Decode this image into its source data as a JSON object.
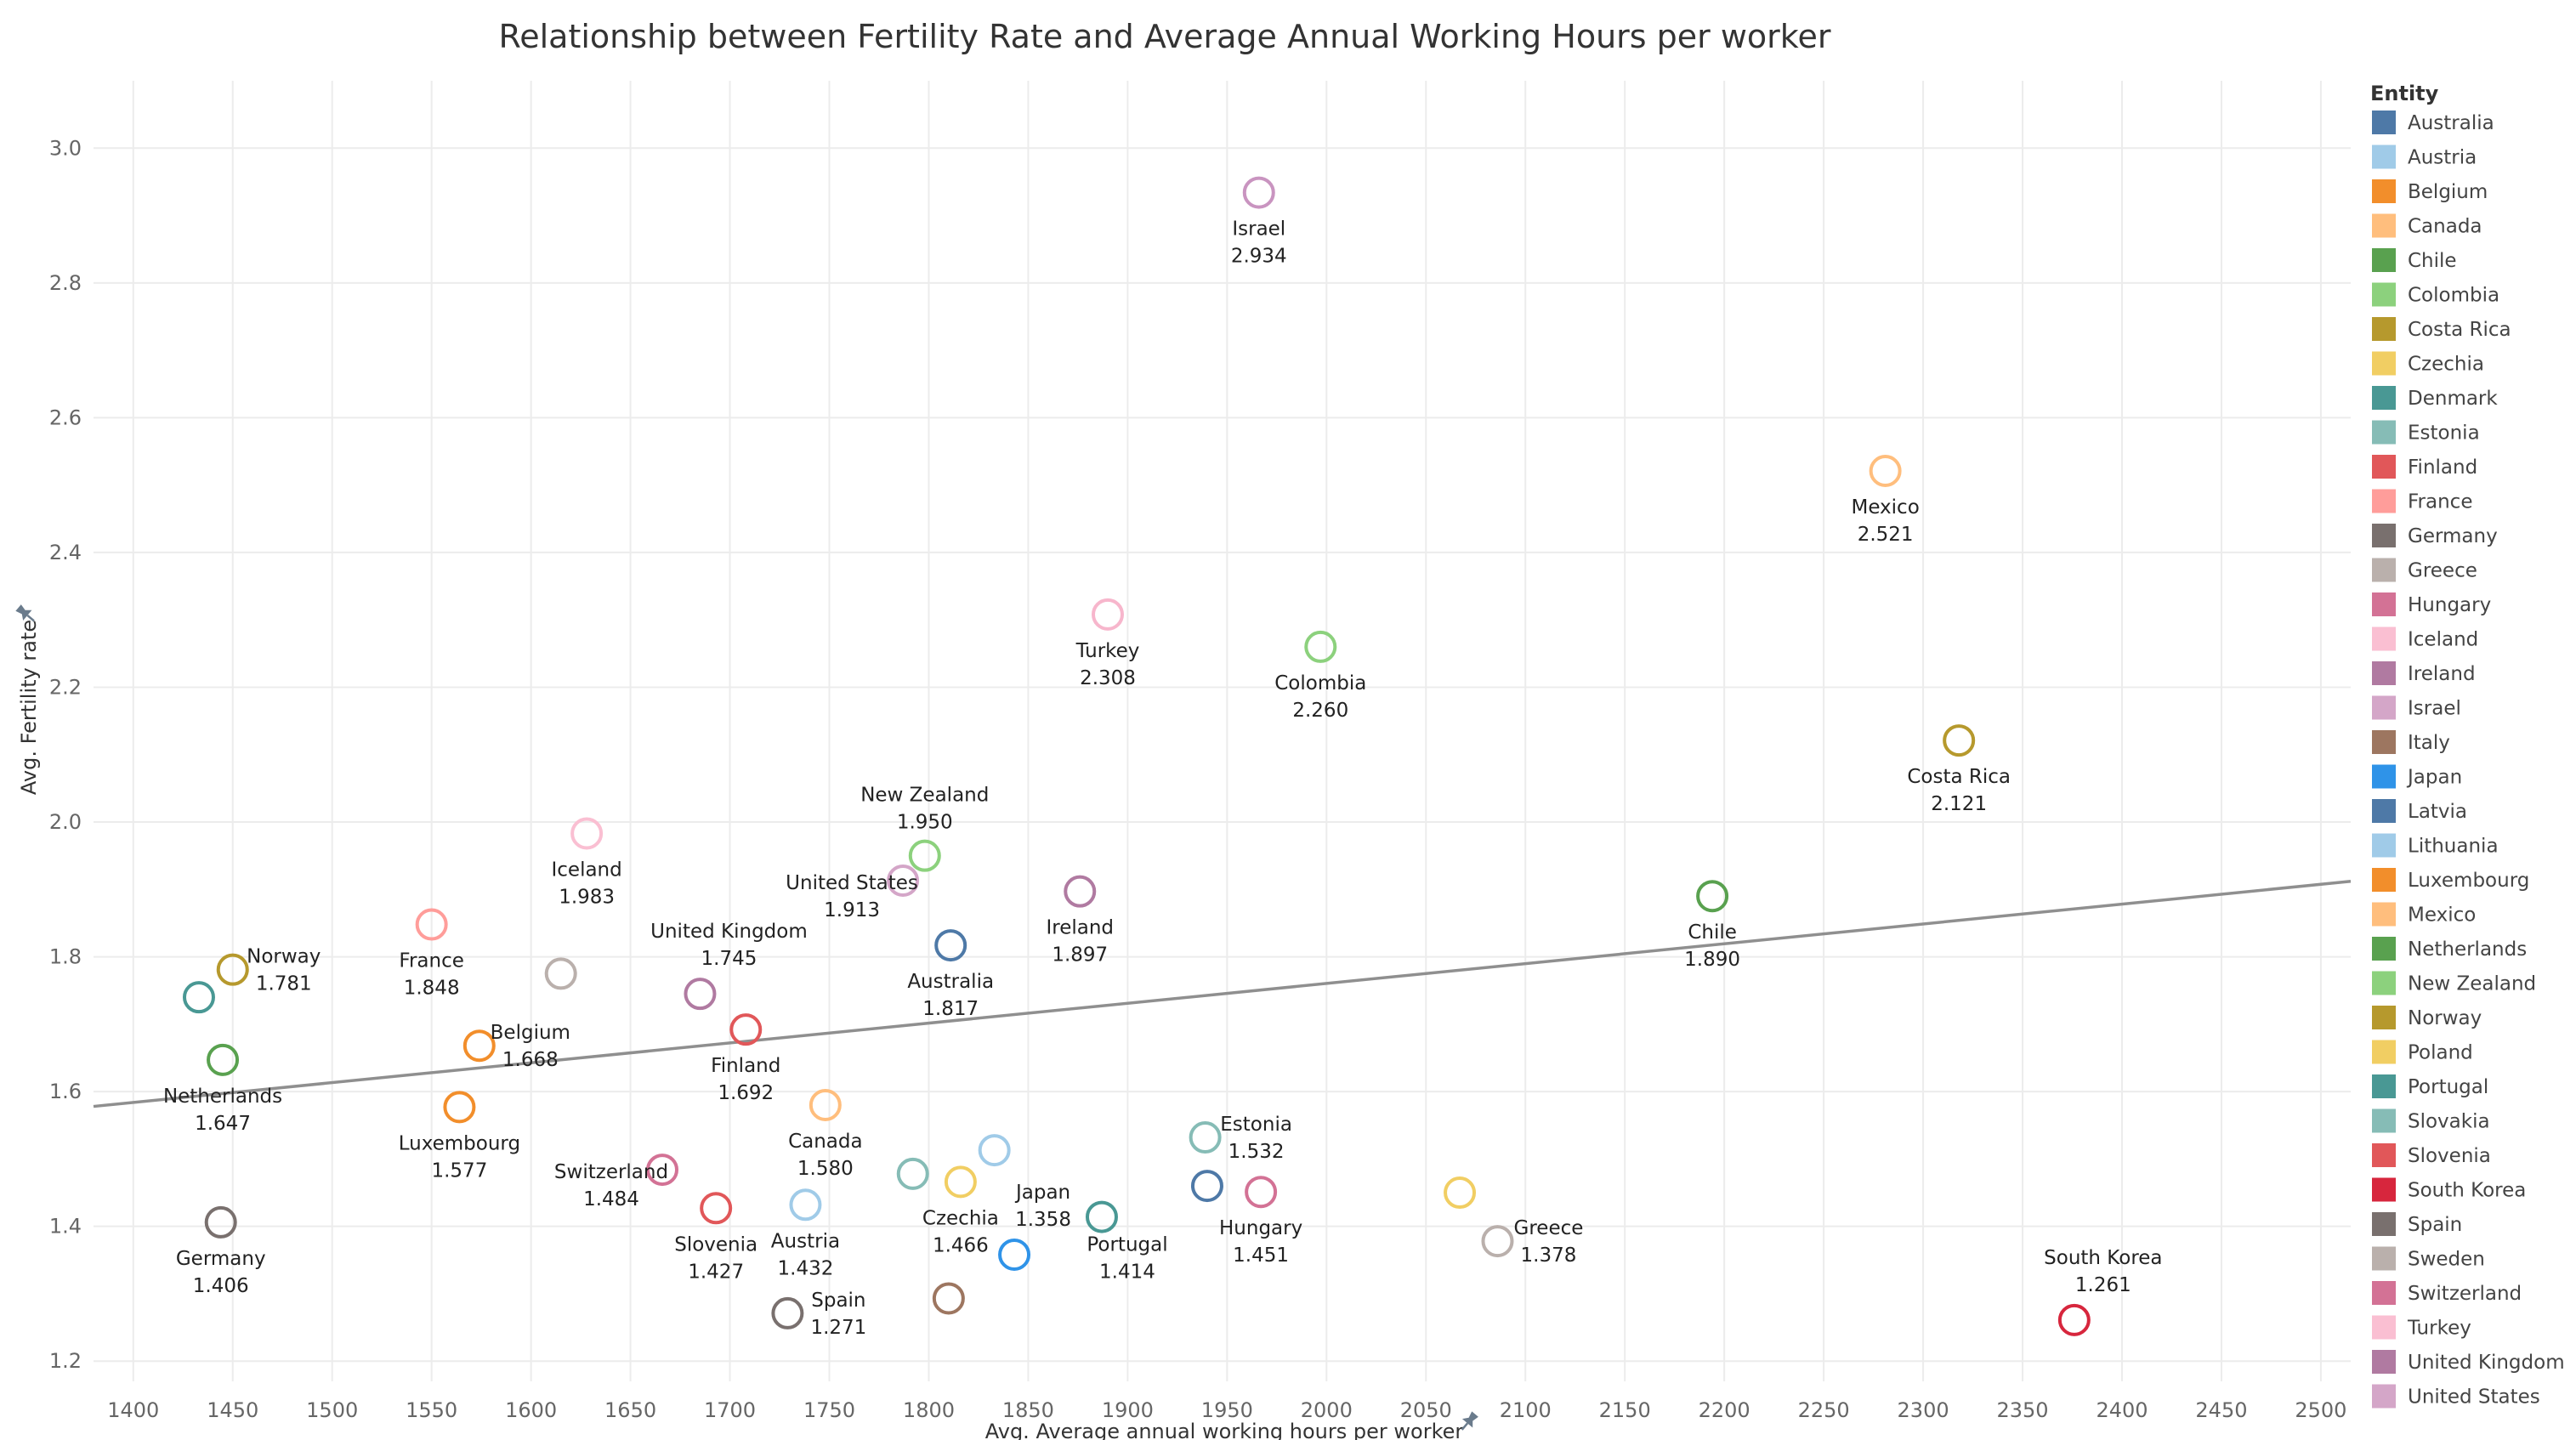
{
  "chart_data": {
    "type": "scatter",
    "title": "Relationship between Fertility Rate and Average Annual Working Hours per worker",
    "xlabel": "Avg. Average annual working hours per worker",
    "ylabel": "Avg. Fertility rate",
    "xlim": [
      1380,
      2515
    ],
    "ylim": [
      1.17,
      3.1
    ],
    "xticks": [
      "1400",
      "1450",
      "1500",
      "1550",
      "1600",
      "1650",
      "1700",
      "1750",
      "1800",
      "1850",
      "1900",
      "1950",
      "2000",
      "2050",
      "2100",
      "2150",
      "2200",
      "2250",
      "2300",
      "2350",
      "2400",
      "2450",
      "2500"
    ],
    "yticks": [
      "1.2",
      "1.4",
      "1.6",
      "1.8",
      "2.0",
      "2.2",
      "2.4",
      "2.6",
      "2.8",
      "3.0"
    ],
    "grid": true,
    "legend_title": "Entity",
    "legend_position": "right",
    "trendline": {
      "x": [
        1380,
        2515
      ],
      "y": [
        1.578,
        1.912
      ]
    },
    "legend": [
      {
        "name": "Australia",
        "color": "#4e79a7"
      },
      {
        "name": "Austria",
        "color": "#a0cbe8"
      },
      {
        "name": "Belgium",
        "color": "#f28e2b"
      },
      {
        "name": "Canada",
        "color": "#ffbe7d"
      },
      {
        "name": "Chile",
        "color": "#59a14f"
      },
      {
        "name": "Colombia",
        "color": "#8cd17d"
      },
      {
        "name": "Costa Rica",
        "color": "#b6992d"
      },
      {
        "name": "Czechia",
        "color": "#f1ce63"
      },
      {
        "name": "Denmark",
        "color": "#499894"
      },
      {
        "name": "Estonia",
        "color": "#86bcb6"
      },
      {
        "name": "Finland",
        "color": "#e15759"
      },
      {
        "name": "France",
        "color": "#ff9d9a"
      },
      {
        "name": "Germany",
        "color": "#79706e"
      },
      {
        "name": "Greece",
        "color": "#bab0ac"
      },
      {
        "name": "Hungary",
        "color": "#d37295"
      },
      {
        "name": "Iceland",
        "color": "#fabfd2"
      },
      {
        "name": "Ireland",
        "color": "#b07aa1"
      },
      {
        "name": "Israel",
        "color": "#d4a6c8"
      },
      {
        "name": "Italy",
        "color": "#9d7660"
      },
      {
        "name": "Japan",
        "color": "#2f93e8"
      },
      {
        "name": "Latvia",
        "color": "#4e79a7"
      },
      {
        "name": "Lithuania",
        "color": "#a0cbe8"
      },
      {
        "name": "Luxembourg",
        "color": "#f28e2b"
      },
      {
        "name": "Mexico",
        "color": "#ffbe7d"
      },
      {
        "name": "Netherlands",
        "color": "#59a14f"
      },
      {
        "name": "New Zealand",
        "color": "#8cd17d"
      },
      {
        "name": "Norway",
        "color": "#b6992d"
      },
      {
        "name": "Poland",
        "color": "#f1ce63"
      },
      {
        "name": "Portugal",
        "color": "#499894"
      },
      {
        "name": "Slovakia",
        "color": "#86bcb6"
      },
      {
        "name": "Slovenia",
        "color": "#e15759"
      },
      {
        "name": "South Korea",
        "color": "#d7263d"
      },
      {
        "name": "Spain",
        "color": "#79706e"
      },
      {
        "name": "Sweden",
        "color": "#bab0ac"
      },
      {
        "name": "Switzerland",
        "color": "#d37295"
      },
      {
        "name": "Turkey",
        "color": "#fabfd2"
      },
      {
        "name": "United Kingdom",
        "color": "#b07aa1"
      },
      {
        "name": "United States",
        "color": "#d4a6c8"
      }
    ],
    "points": [
      {
        "name": "Israel",
        "x": 1966,
        "y": 2.934,
        "label": "2.934",
        "lpos": "below",
        "color": "#c994c0"
      },
      {
        "name": "Mexico",
        "x": 2281,
        "y": 2.521,
        "label": "2.521",
        "lpos": "below",
        "color": "#ffbe7d"
      },
      {
        "name": "Turkey",
        "x": 1890,
        "y": 2.308,
        "label": "2.308",
        "lpos": "below",
        "color": "#f7b6cc"
      },
      {
        "name": "Colombia",
        "x": 1997,
        "y": 2.26,
        "label": "2.260",
        "lpos": "below",
        "color": "#8cd17d"
      },
      {
        "name": "Costa Rica",
        "x": 2318,
        "y": 2.121,
        "label": "2.121",
        "lpos": "below",
        "color": "#b6992d"
      },
      {
        "name": "Iceland",
        "x": 1628,
        "y": 1.983,
        "label": "1.983",
        "lpos": "below",
        "color": "#fabfd2"
      },
      {
        "name": "New Zealand",
        "x": 1798,
        "y": 1.95,
        "label": "1.950",
        "lpos": "above",
        "color": "#8cd17d"
      },
      {
        "name": "United States",
        "x": 1787,
        "y": 1.913,
        "label": "1.913",
        "lpos": "left",
        "color": "#d4a6c8"
      },
      {
        "name": "Ireland",
        "x": 1876,
        "y": 1.897,
        "label": "1.897",
        "lpos": "below",
        "color": "#b07aa1"
      },
      {
        "name": "Chile",
        "x": 2194,
        "y": 1.89,
        "label": "1.890",
        "lpos": "below",
        "color": "#59a14f"
      },
      {
        "name": "France",
        "x": 1550,
        "y": 1.848,
        "label": "1.848",
        "lpos": "below",
        "color": "#ff9d9a"
      },
      {
        "name": "Australia",
        "x": 1811,
        "y": 1.817,
        "label": "1.817",
        "lpos": "below",
        "color": "#4e79a7"
      },
      {
        "name": "Norway",
        "x": 1450,
        "y": 1.781,
        "label": "1.781",
        "lpos": "right",
        "color": "#b6992d"
      },
      {
        "name": "Sweden",
        "x": 1615,
        "y": 1.775,
        "label": "",
        "lpos": "none",
        "color": "#bab0ac"
      },
      {
        "name": "United Kingdom",
        "x": 1685,
        "y": 1.745,
        "label": "1.745",
        "lpos": "aboveright",
        "color": "#b07aa1"
      },
      {
        "name": "Denmark",
        "x": 1433,
        "y": 1.74,
        "label": "",
        "lpos": "none",
        "color": "#499894"
      },
      {
        "name": "Finland",
        "x": 1708,
        "y": 1.692,
        "label": "1.692",
        "lpos": "below",
        "color": "#e15759"
      },
      {
        "name": "Belgium",
        "x": 1574,
        "y": 1.668,
        "label": "1.668",
        "lpos": "right",
        "color": "#f28e2b"
      },
      {
        "name": "Netherlands",
        "x": 1445,
        "y": 1.647,
        "label": "1.647",
        "lpos": "below",
        "color": "#59a14f"
      },
      {
        "name": "Canada",
        "x": 1748,
        "y": 1.58,
        "label": "1.580",
        "lpos": "below",
        "color": "#ffbe7d"
      },
      {
        "name": "Luxembourg",
        "x": 1564,
        "y": 1.577,
        "label": "1.577",
        "lpos": "below",
        "color": "#f28e2b"
      },
      {
        "name": "Estonia",
        "x": 1939,
        "y": 1.532,
        "label": "1.532",
        "lpos": "right",
        "color": "#86bcb6"
      },
      {
        "name": "Lithuania",
        "x": 1833,
        "y": 1.513,
        "label": "",
        "lpos": "none",
        "color": "#a0cbe8"
      },
      {
        "name": "Switzerland",
        "x": 1666,
        "y": 1.484,
        "label": "1.484",
        "lpos": "left",
        "color": "#d37295"
      },
      {
        "name": "Slovakia",
        "x": 1792,
        "y": 1.478,
        "label": "",
        "lpos": "none",
        "color": "#86bcb6"
      },
      {
        "name": "Czechia",
        "x": 1816,
        "y": 1.466,
        "label": "1.466",
        "lpos": "below",
        "color": "#f1ce63"
      },
      {
        "name": "Latvia",
        "x": 1940,
        "y": 1.46,
        "label": "",
        "lpos": "none",
        "color": "#4e79a7"
      },
      {
        "name": "Hungary",
        "x": 1967,
        "y": 1.451,
        "label": "1.451",
        "lpos": "below",
        "color": "#d37295"
      },
      {
        "name": "Poland",
        "x": 2067,
        "y": 1.45,
        "label": "",
        "lpos": "none",
        "color": "#f1ce63"
      },
      {
        "name": "Austria",
        "x": 1738,
        "y": 1.432,
        "label": "1.432",
        "lpos": "below",
        "color": "#a0cbe8"
      },
      {
        "name": "Slovenia",
        "x": 1693,
        "y": 1.427,
        "label": "1.427",
        "lpos": "below",
        "color": "#e15759"
      },
      {
        "name": "Portugal",
        "x": 1887,
        "y": 1.414,
        "label": "1.414",
        "lpos": "belowright",
        "color": "#499894"
      },
      {
        "name": "Germany",
        "x": 1444,
        "y": 1.406,
        "label": "1.406",
        "lpos": "below",
        "color": "#79706e"
      },
      {
        "name": "Greece",
        "x": 2086,
        "y": 1.378,
        "label": "1.378",
        "lpos": "right",
        "color": "#bab0ac"
      },
      {
        "name": "Japan",
        "x": 1843,
        "y": 1.358,
        "label": "1.358",
        "lpos": "aboveright",
        "color": "#2f93e8"
      },
      {
        "name": "Italy",
        "x": 1810,
        "y": 1.293,
        "label": "",
        "lpos": "none",
        "color": "#9d7660"
      },
      {
        "name": "Spain",
        "x": 1729,
        "y": 1.271,
        "label": "1.271",
        "lpos": "right",
        "color": "#79706e"
      },
      {
        "name": "South Korea",
        "x": 2376,
        "y": 1.261,
        "label": "1.261",
        "lpos": "aboveright",
        "color": "#d7263d"
      }
    ]
  }
}
